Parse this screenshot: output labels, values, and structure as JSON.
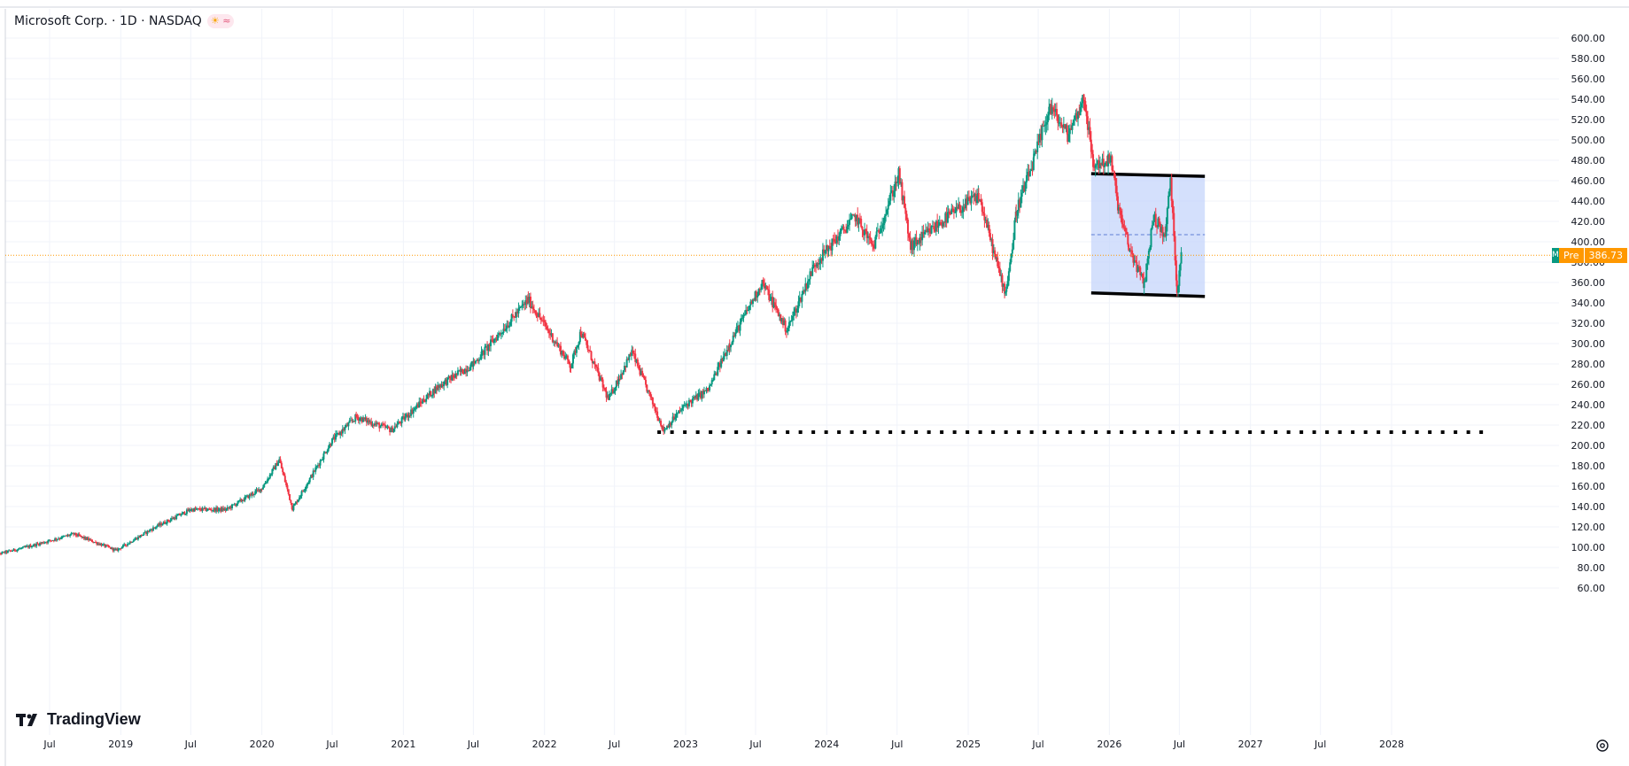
{
  "legend": {
    "title": "Microsoft Corp. · 1D · NASDAQ",
    "badge": "≈"
  },
  "branding": {
    "logo_text": "TradingView"
  },
  "price_label": {
    "tag": "Pre",
    "value": "386.73",
    "stub": "M"
  },
  "colors": {
    "up": "#089981",
    "down": "#f23645",
    "range_fill": "#c5d5fb",
    "grid": "#f0f3fa",
    "axis_text": "#131722",
    "price_line": "#ff9800"
  },
  "chart_data": {
    "type": "candlestick",
    "y_scale": "linear",
    "ylim": [
      50,
      610
    ],
    "y_ticks": [
      "60.00",
      "80.00",
      "100.00",
      "120.00",
      "140.00",
      "160.00",
      "180.00",
      "200.00",
      "220.00",
      "240.00",
      "260.00",
      "280.00",
      "300.00",
      "320.00",
      "340.00",
      "360.00",
      "380.00",
      "400.00",
      "420.00",
      "440.00",
      "460.00",
      "480.00",
      "500.00",
      "520.00",
      "540.00",
      "560.00",
      "580.00",
      "600.00"
    ],
    "x_ticks": [
      {
        "date": "2018-07-01",
        "label": "Jul"
      },
      {
        "date": "2019-01-01",
        "label": "2019"
      },
      {
        "date": "2019-07-01",
        "label": "Jul"
      },
      {
        "date": "2020-01-01",
        "label": "2020"
      },
      {
        "date": "2020-07-01",
        "label": "Jul"
      },
      {
        "date": "2021-01-01",
        "label": "2021"
      },
      {
        "date": "2021-07-01",
        "label": "Jul"
      },
      {
        "date": "2022-01-01",
        "label": "2022"
      },
      {
        "date": "2022-07-01",
        "label": "Jul"
      },
      {
        "date": "2023-01-01",
        "label": "2023"
      },
      {
        "date": "2023-07-01",
        "label": "Jul"
      },
      {
        "date": "2024-01-01",
        "label": "2024"
      },
      {
        "date": "2024-07-01",
        "label": "Jul"
      },
      {
        "date": "2025-01-01",
        "label": "2025"
      },
      {
        "date": "2025-07-01",
        "label": "Jul"
      },
      {
        "date": "2026-01-01",
        "label": "2026"
      },
      {
        "date": "2026-07-01",
        "label": "Jul"
      },
      {
        "date": "2027-01-01",
        "label": "2027"
      },
      {
        "date": "2027-07-01",
        "label": "Jul"
      },
      {
        "date": "2028-01-01",
        "label": "2028"
      }
    ],
    "price_path": [
      {
        "date": "2018-02-01",
        "price": 92
      },
      {
        "date": "2018-05-01",
        "price": 100
      },
      {
        "date": "2018-09-01",
        "price": 113
      },
      {
        "date": "2018-12-20",
        "price": 97
      },
      {
        "date": "2019-04-01",
        "price": 120
      },
      {
        "date": "2019-07-01",
        "price": 137
      },
      {
        "date": "2019-10-01",
        "price": 137
      },
      {
        "date": "2020-01-01",
        "price": 158
      },
      {
        "date": "2020-02-15",
        "price": 186
      },
      {
        "date": "2020-03-20",
        "price": 138
      },
      {
        "date": "2020-07-01",
        "price": 205
      },
      {
        "date": "2020-09-01",
        "price": 228
      },
      {
        "date": "2020-12-01",
        "price": 215
      },
      {
        "date": "2021-04-01",
        "price": 258
      },
      {
        "date": "2021-07-01",
        "price": 280
      },
      {
        "date": "2021-11-20",
        "price": 343
      },
      {
        "date": "2022-03-10",
        "price": 278
      },
      {
        "date": "2022-04-05",
        "price": 312
      },
      {
        "date": "2022-06-15",
        "price": 245
      },
      {
        "date": "2022-08-15",
        "price": 292
      },
      {
        "date": "2022-11-05",
        "price": 215
      },
      {
        "date": "2023-01-01",
        "price": 240
      },
      {
        "date": "2023-03-01",
        "price": 255
      },
      {
        "date": "2023-04-25",
        "price": 300
      },
      {
        "date": "2023-07-18",
        "price": 360
      },
      {
        "date": "2023-09-20",
        "price": 313
      },
      {
        "date": "2023-12-01",
        "price": 378
      },
      {
        "date": "2024-03-15",
        "price": 425
      },
      {
        "date": "2024-04-30",
        "price": 395
      },
      {
        "date": "2024-07-05",
        "price": 466
      },
      {
        "date": "2024-08-05",
        "price": 395
      },
      {
        "date": "2024-11-10",
        "price": 425
      },
      {
        "date": "2025-01-28",
        "price": 445
      },
      {
        "date": "2025-03-15",
        "price": 380
      },
      {
        "date": "2025-04-07",
        "price": 350
      },
      {
        "date": "2025-04-25",
        "price": 395
      },
      {
        "date": "2025-05-05",
        "price": 430
      },
      {
        "date": "2025-06-20",
        "price": 480
      },
      {
        "date": "2025-07-31",
        "price": 533
      },
      {
        "date": "2025-09-15",
        "price": 505
      },
      {
        "date": "2025-10-28",
        "price": 542
      },
      {
        "date": "2025-11-20",
        "price": 475
      },
      {
        "date": "2026-01-05",
        "price": 480
      },
      {
        "date": "2026-01-25",
        "price": 432
      },
      {
        "date": "2026-02-20",
        "price": 395
      },
      {
        "date": "2026-04-01",
        "price": 358
      },
      {
        "date": "2026-04-25",
        "price": 425
      },
      {
        "date": "2026-05-25",
        "price": 405
      },
      {
        "date": "2026-06-08",
        "price": 462
      },
      {
        "date": "2026-06-25",
        "price": 352
      },
      {
        "date": "2026-07-06",
        "price": 386.73
      }
    ],
    "horizontal_line": {
      "price": 213,
      "start": "2022-10-20",
      "end": "2028-09-15",
      "style": "dotted"
    },
    "range_box": {
      "start": "2025-11-15",
      "end": "2026-09-05",
      "top": 466,
      "bottom": 348,
      "mid": 407
    },
    "current_price": 386.73
  }
}
